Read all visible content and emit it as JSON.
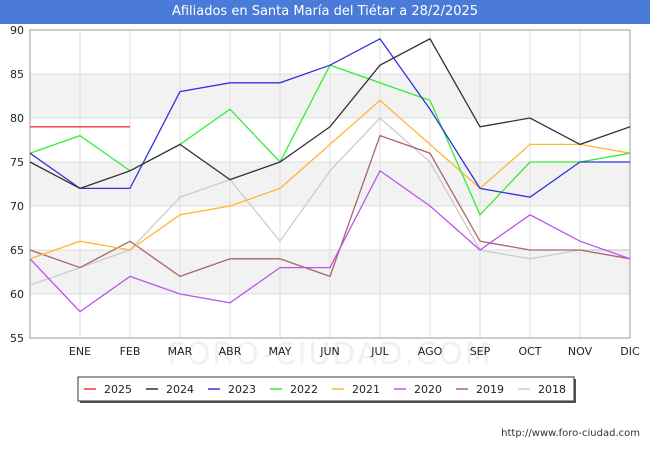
{
  "title": "Afiliados en Santa María del Tiétar a 28/2/2025",
  "watermark": "FORO-CIUDAD.COM",
  "source_url": "http://www.foro-ciudad.com",
  "colors": {
    "title_bg": "#4a7bd8",
    "plot_bg_band": "#f2f2f2",
    "grid": "#dddddd"
  },
  "chart_data": {
    "type": "line",
    "title": "Afiliados en Santa María del Tiétar a 28/2/2025",
    "categories": [
      "",
      "ENE",
      "FEB",
      "MAR",
      "ABR",
      "MAY",
      "JUN",
      "JUL",
      "AGO",
      "SEP",
      "OCT",
      "NOV",
      "DIC"
    ],
    "ylim": [
      55,
      90
    ],
    "yticks": [
      55,
      60,
      65,
      70,
      75,
      80,
      85,
      90
    ],
    "grid": true,
    "legend_position": "bottom",
    "series": [
      {
        "name": "2025",
        "color": "#ff3333",
        "values": [
          79,
          79,
          79,
          null,
          null,
          null,
          null,
          null,
          null,
          null,
          null,
          null,
          null
        ]
      },
      {
        "name": "2024",
        "color": "#333333",
        "values": [
          75,
          72,
          74,
          77,
          73,
          75,
          79,
          86,
          89,
          79,
          80,
          77,
          79
        ]
      },
      {
        "name": "2023",
        "color": "#3333dd",
        "values": [
          76,
          72,
          72,
          83,
          84,
          84,
          86,
          89,
          81,
          72,
          71,
          75,
          75
        ]
      },
      {
        "name": "2022",
        "color": "#33ee33",
        "values": [
          76,
          78,
          74,
          77,
          81,
          75,
          86,
          84,
          82,
          69,
          75,
          75,
          76
        ]
      },
      {
        "name": "2021",
        "color": "#ffb733",
        "values": [
          64,
          66,
          65,
          69,
          70,
          72,
          77,
          82,
          77,
          72,
          77,
          77,
          76
        ]
      },
      {
        "name": "2020",
        "color": "#bb55ee",
        "values": [
          64,
          58,
          62,
          60,
          59,
          63,
          63,
          74,
          70,
          65,
          69,
          66,
          64
        ]
      },
      {
        "name": "2019",
        "color": "#aa6666",
        "values": [
          65,
          63,
          66,
          62,
          64,
          64,
          62,
          78,
          76,
          66,
          65,
          65,
          64
        ]
      },
      {
        "name": "2018",
        "color": "#cccccc",
        "values": [
          61,
          63,
          65,
          71,
          73,
          66,
          74,
          80,
          75,
          65,
          64,
          65,
          65
        ]
      }
    ]
  }
}
